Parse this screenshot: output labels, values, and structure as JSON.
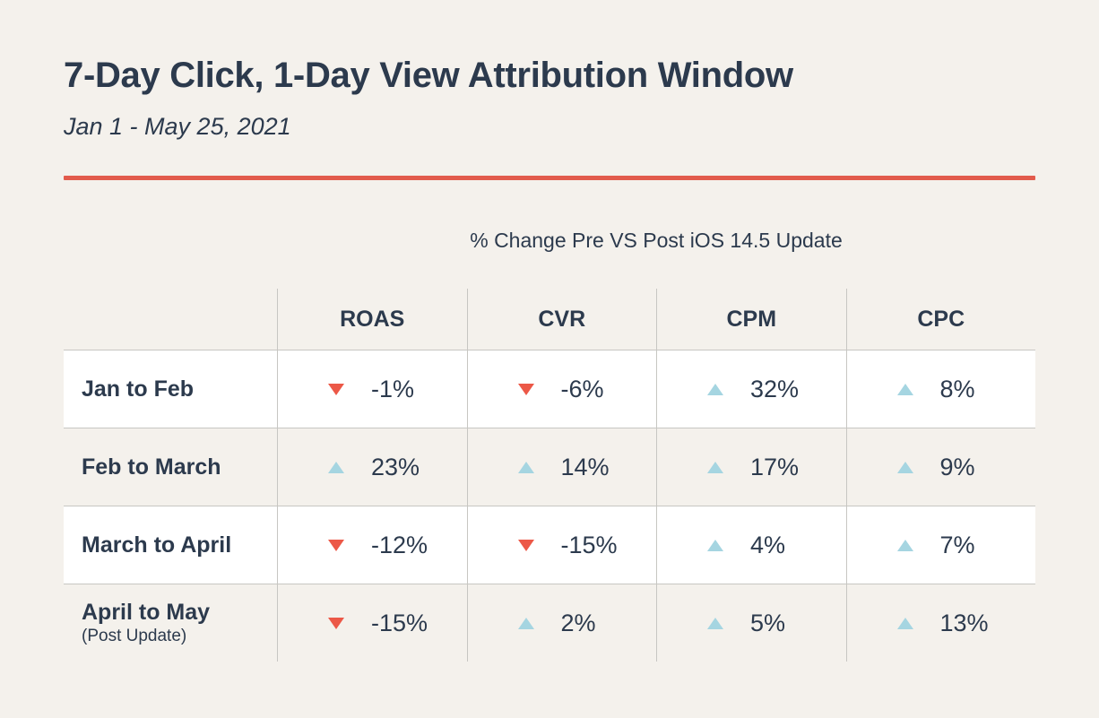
{
  "header": {
    "title": "7-Day Click, 1-Day View Attribution Window",
    "date_range": "Jan 1 - May 25, 2021"
  },
  "colors": {
    "background": "#F4F1EC",
    "row_highlight": "#FFFFFF",
    "text_navy": "#2C3A4D",
    "accent_red": "#E25B4C",
    "arrow_down_red": "#EC5847",
    "arrow_up_blue": "#A5D5E1",
    "grid_line": "#C7C6C2"
  },
  "icons": {
    "up": "arrow-up-triangle",
    "down": "arrow-down-triangle"
  },
  "chart_data": {
    "type": "table",
    "title": "% Change Pre VS Post iOS 14.5 Update",
    "columns": [
      "ROAS",
      "CVR",
      "CPM",
      "CPC"
    ],
    "rows": [
      {
        "label": "Jan to Feb",
        "sublabel": "",
        "cells": [
          {
            "direction": "down",
            "value": "-1%"
          },
          {
            "direction": "down",
            "value": "-6%"
          },
          {
            "direction": "up",
            "value": "32%"
          },
          {
            "direction": "up",
            "value": "8%"
          }
        ]
      },
      {
        "label": "Feb to March",
        "sublabel": "",
        "cells": [
          {
            "direction": "up",
            "value": "23%"
          },
          {
            "direction": "up",
            "value": "14%"
          },
          {
            "direction": "up",
            "value": "17%"
          },
          {
            "direction": "up",
            "value": "9%"
          }
        ]
      },
      {
        "label": "March to April",
        "sublabel": "",
        "cells": [
          {
            "direction": "down",
            "value": "-12%"
          },
          {
            "direction": "down",
            "value": "-15%"
          },
          {
            "direction": "up",
            "value": "4%"
          },
          {
            "direction": "up",
            "value": "7%"
          }
        ]
      },
      {
        "label": "April to May",
        "sublabel": "(Post Update)",
        "cells": [
          {
            "direction": "down",
            "value": "-15%"
          },
          {
            "direction": "up",
            "value": "2%"
          },
          {
            "direction": "up",
            "value": "5%"
          },
          {
            "direction": "up",
            "value": "13%"
          }
        ]
      }
    ]
  }
}
